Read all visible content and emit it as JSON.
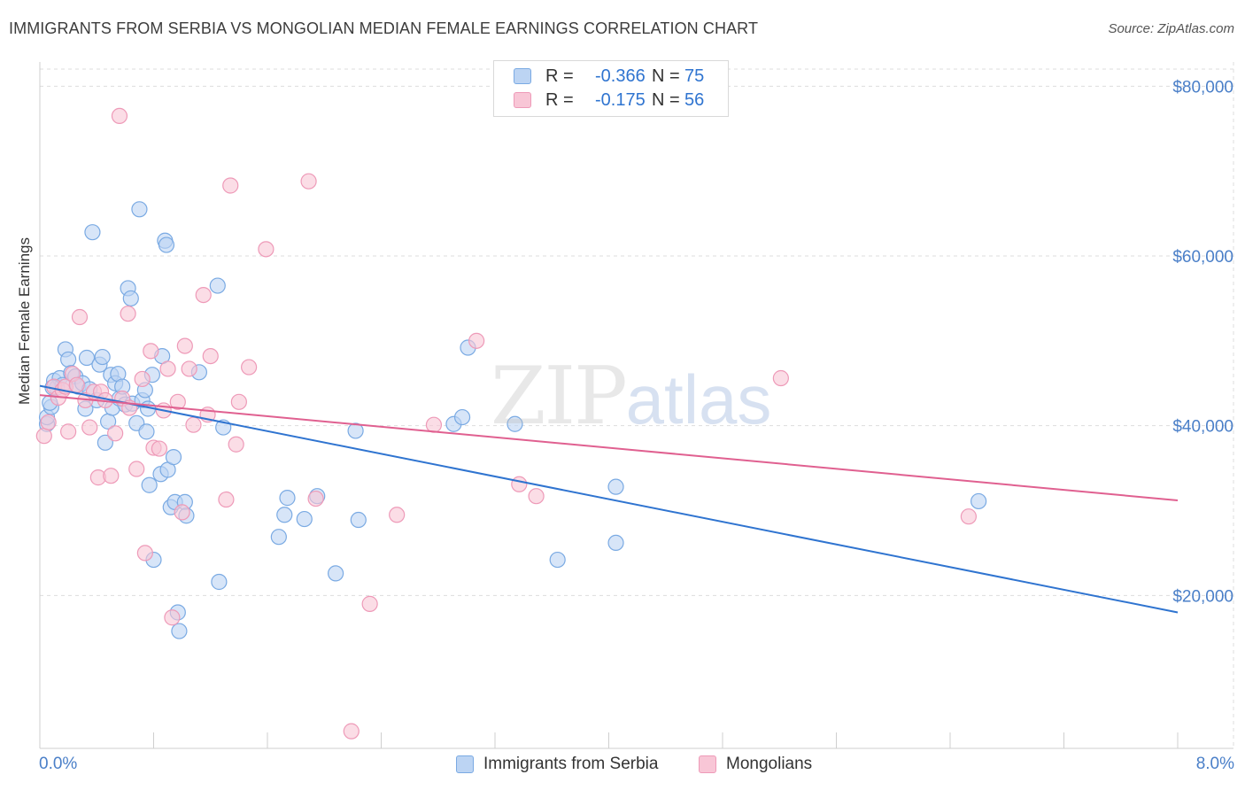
{
  "title": "IMMIGRANTS FROM SERBIA VS MONGOLIAN MEDIAN FEMALE EARNINGS CORRELATION CHART",
  "source": "Source: ZipAtlas.com",
  "watermark": {
    "zip": "ZIP",
    "atlas": "atlas"
  },
  "legend_top": [
    {
      "r_label": "R =",
      "r_value": "-0.366",
      "n_label": "N =",
      "n_value": "75",
      "color": "#8ab4e8"
    },
    {
      "r_label": "R =",
      "r_value": "-0.175",
      "n_label": "N =",
      "n_value": "56",
      "color": "#f0a0bc"
    }
  ],
  "legend_bottom": [
    {
      "label": "Immigrants from Serbia",
      "color": "#8ab4e8"
    },
    {
      "label": "Mongolians",
      "color": "#f0a0bc"
    }
  ],
  "colors": {
    "blue_fill": "#bcd4f3",
    "blue_stroke": "#7aaae3",
    "blue_line": "#2f74d0",
    "pink_fill": "#f8c6d6",
    "pink_stroke": "#ee9ab8",
    "pink_line": "#e06090",
    "tick_text": "#4a7fc8",
    "grid": "#dddddd"
  },
  "chart_data": {
    "type": "scatter",
    "xlabel": "",
    "ylabel": "Median Female Earnings",
    "x_tick_labels": [
      "0.0%",
      "8.0%"
    ],
    "y_tick_labels": [
      "$20,000",
      "$40,000",
      "$60,000",
      "$80,000"
    ],
    "y_ticks": [
      20000,
      40000,
      60000,
      80000
    ],
    "xlim": [
      0,
      0.08
    ],
    "ylim": [
      2000,
      82000
    ],
    "grid": true,
    "series": [
      {
        "name": "Immigrants from Serbia",
        "trend": {
          "x": [
            0.0,
            0.08
          ],
          "y": [
            44700,
            18000
          ]
        },
        "points": [
          [
            0.0005,
            40200
          ],
          [
            0.0005,
            41000
          ],
          [
            0.0008,
            42200
          ],
          [
            0.001,
            45300
          ],
          [
            0.0012,
            44500
          ],
          [
            0.0014,
            45600
          ],
          [
            0.0016,
            44800
          ],
          [
            0.0018,
            49000
          ],
          [
            0.002,
            47800
          ],
          [
            0.0022,
            46200
          ],
          [
            0.0025,
            45800
          ],
          [
            0.0027,
            44600
          ],
          [
            0.003,
            45000
          ],
          [
            0.0032,
            42000
          ],
          [
            0.0033,
            48000
          ],
          [
            0.0035,
            44300
          ],
          [
            0.0037,
            62800
          ],
          [
            0.004,
            43000
          ],
          [
            0.0042,
            47200
          ],
          [
            0.0044,
            48100
          ],
          [
            0.0046,
            38000
          ],
          [
            0.0048,
            40500
          ],
          [
            0.005,
            46000
          ],
          [
            0.0051,
            42100
          ],
          [
            0.0053,
            45000
          ],
          [
            0.0055,
            46100
          ],
          [
            0.0056,
            43200
          ],
          [
            0.0058,
            44600
          ],
          [
            0.006,
            42500
          ],
          [
            0.0062,
            56200
          ],
          [
            0.0064,
            55000
          ],
          [
            0.0065,
            42600
          ],
          [
            0.0068,
            40300
          ],
          [
            0.007,
            65500
          ],
          [
            0.0072,
            43000
          ],
          [
            0.0074,
            44200
          ],
          [
            0.0075,
            39300
          ],
          [
            0.0076,
            42000
          ],
          [
            0.0077,
            33000
          ],
          [
            0.0079,
            46000
          ],
          [
            0.008,
            24200
          ],
          [
            0.0085,
            34300
          ],
          [
            0.0086,
            48200
          ],
          [
            0.0088,
            61800
          ],
          [
            0.0089,
            61300
          ],
          [
            0.009,
            34800
          ],
          [
            0.0092,
            30400
          ],
          [
            0.0094,
            36300
          ],
          [
            0.0095,
            31000
          ],
          [
            0.0097,
            18000
          ],
          [
            0.0098,
            15800
          ],
          [
            0.0102,
            31000
          ],
          [
            0.0103,
            29400
          ],
          [
            0.0112,
            46300
          ],
          [
            0.0125,
            56500
          ],
          [
            0.0126,
            21600
          ],
          [
            0.0129,
            39800
          ],
          [
            0.0168,
            26900
          ],
          [
            0.0172,
            29500
          ],
          [
            0.0174,
            31500
          ],
          [
            0.0186,
            29000
          ],
          [
            0.0195,
            31700
          ],
          [
            0.0208,
            22600
          ],
          [
            0.0222,
            39400
          ],
          [
            0.0224,
            28900
          ],
          [
            0.0291,
            40200
          ],
          [
            0.0297,
            41000
          ],
          [
            0.0301,
            49200
          ],
          [
            0.0334,
            40200
          ],
          [
            0.0364,
            24200
          ],
          [
            0.0405,
            26200
          ],
          [
            0.0405,
            32800
          ],
          [
            0.066,
            31100
          ],
          [
            0.0007,
            42700
          ],
          [
            0.0009,
            44500
          ]
        ]
      },
      {
        "name": "Mongolians",
        "trend": {
          "x": [
            0.0,
            0.08
          ],
          "y": [
            43600,
            31200
          ]
        },
        "points": [
          [
            0.0003,
            38800
          ],
          [
            0.0006,
            40400
          ],
          [
            0.001,
            44600
          ],
          [
            0.0013,
            43300
          ],
          [
            0.0016,
            44200
          ],
          [
            0.0018,
            44600
          ],
          [
            0.002,
            39300
          ],
          [
            0.0023,
            46100
          ],
          [
            0.0026,
            44800
          ],
          [
            0.0028,
            52800
          ],
          [
            0.0032,
            43000
          ],
          [
            0.0035,
            39800
          ],
          [
            0.0038,
            44000
          ],
          [
            0.0041,
            33900
          ],
          [
            0.0043,
            44000
          ],
          [
            0.0046,
            43000
          ],
          [
            0.005,
            34100
          ],
          [
            0.0053,
            39100
          ],
          [
            0.0056,
            76500
          ],
          [
            0.0058,
            43200
          ],
          [
            0.0062,
            53200
          ],
          [
            0.0063,
            42100
          ],
          [
            0.0068,
            34900
          ],
          [
            0.0072,
            45500
          ],
          [
            0.0074,
            25000
          ],
          [
            0.0078,
            48800
          ],
          [
            0.008,
            37400
          ],
          [
            0.0084,
            37300
          ],
          [
            0.0087,
            41800
          ],
          [
            0.009,
            46700
          ],
          [
            0.0093,
            17400
          ],
          [
            0.0097,
            42800
          ],
          [
            0.01,
            29800
          ],
          [
            0.0102,
            49400
          ],
          [
            0.0105,
            46700
          ],
          [
            0.0108,
            40100
          ],
          [
            0.0115,
            55400
          ],
          [
            0.0118,
            41300
          ],
          [
            0.012,
            48200
          ],
          [
            0.0131,
            31300
          ],
          [
            0.0134,
            68300
          ],
          [
            0.0138,
            37800
          ],
          [
            0.014,
            42800
          ],
          [
            0.0147,
            46900
          ],
          [
            0.0159,
            60800
          ],
          [
            0.0189,
            68800
          ],
          [
            0.0194,
            31400
          ],
          [
            0.0219,
            4000
          ],
          [
            0.0232,
            19000
          ],
          [
            0.0251,
            29500
          ],
          [
            0.0277,
            40100
          ],
          [
            0.0307,
            50000
          ],
          [
            0.0337,
            33100
          ],
          [
            0.0349,
            31700
          ],
          [
            0.0521,
            45600
          ],
          [
            0.0653,
            29300
          ]
        ]
      }
    ]
  }
}
